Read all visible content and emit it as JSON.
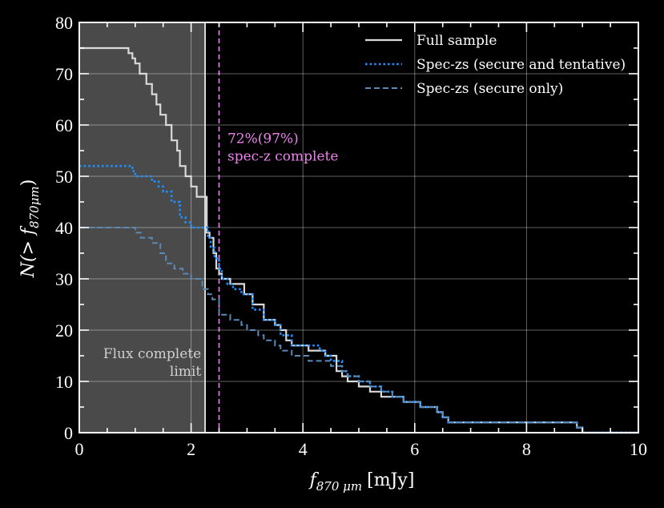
{
  "chart_data": {
    "type": "line",
    "xlabel": "f870 μm [mJy]",
    "xlabel_main": "f",
    "xlabel_sub": "870 μm",
    "xlabel_unit": "[mJy]",
    "ylabel": "N(> f870μm)",
    "ylabel_pre": "N(> f",
    "ylabel_sub": "870μm",
    "ylabel_post": ")",
    "xlim": [
      0,
      10
    ],
    "ylim": [
      0,
      80
    ],
    "x_ticks": [
      "0",
      "2",
      "4",
      "6",
      "8",
      "10"
    ],
    "y_ticks": [
      "0",
      "10",
      "20",
      "30",
      "40",
      "50",
      "60",
      "70",
      "80"
    ],
    "grid": true,
    "legend_position": "top-right",
    "series": [
      {
        "name": "Full sample",
        "style": "solid",
        "color": "#d9d9d9",
        "x": [
          0,
          0.8,
          0.88,
          0.95,
          1.0,
          1.08,
          1.2,
          1.3,
          1.38,
          1.45,
          1.55,
          1.65,
          1.75,
          1.8,
          1.9,
          2.0,
          2.1,
          2.28,
          2.33,
          2.4,
          2.45,
          2.5,
          2.55,
          2.6,
          2.7,
          2.95,
          3.1,
          3.3,
          3.5,
          3.6,
          3.7,
          3.8,
          4.1,
          4.3,
          4.4,
          4.6,
          4.7,
          4.8,
          5.0,
          5.2,
          5.4,
          5.6,
          5.8,
          6.1,
          6.4,
          6.5,
          6.6,
          8.8,
          8.9,
          9.0,
          10
        ],
        "y": [
          75,
          75,
          74,
          73,
          72,
          70,
          68,
          66,
          64,
          62,
          60,
          57,
          55,
          52,
          50,
          48,
          46,
          39,
          38,
          35,
          32,
          31,
          30,
          30,
          29,
          27,
          25,
          22,
          21,
          20,
          18,
          17,
          16,
          16,
          15,
          12,
          11,
          10,
          9,
          8,
          7,
          7,
          6,
          5,
          4,
          3,
          2,
          2,
          1,
          0,
          0
        ]
      },
      {
        "name": "Spec-zs (secure and tentative)",
        "style": "dotted",
        "color": "#1e90ff",
        "x": [
          0,
          0.88,
          0.95,
          1.0,
          1.1,
          1.3,
          1.42,
          1.5,
          1.65,
          1.8,
          1.9,
          2.0,
          2.1,
          2.2,
          2.3,
          2.35,
          2.42,
          2.5,
          2.55,
          2.65,
          2.75,
          2.9,
          3.1,
          3.3,
          3.5,
          3.6,
          3.8,
          4.3,
          4.4,
          4.5,
          4.7,
          4.8,
          5.0,
          5.2,
          5.4,
          5.6,
          5.8,
          6.1,
          6.4,
          6.5,
          6.6,
          8.8,
          8.9,
          9.0,
          10
        ],
        "y": [
          52,
          52,
          51,
          50,
          50,
          49,
          48,
          47,
          45,
          42,
          41,
          40,
          40,
          40,
          38,
          36,
          34,
          32,
          30,
          29,
          28,
          27,
          24,
          22,
          21,
          19,
          17,
          16,
          15,
          14,
          12,
          11,
          10,
          9,
          8,
          7,
          6,
          5,
          4,
          3,
          2,
          2,
          1,
          0,
          0
        ]
      },
      {
        "name": "Spec-zs (secure only)",
        "style": "dashed",
        "color": "#5b8ab8",
        "x": [
          0,
          0.9,
          1.0,
          1.1,
          1.3,
          1.45,
          1.55,
          1.7,
          1.85,
          2.0,
          2.2,
          2.3,
          2.38,
          2.5,
          2.6,
          2.7,
          2.8,
          2.9,
          3.0,
          3.1,
          3.2,
          3.3,
          3.5,
          3.6,
          3.8,
          4.1,
          4.3,
          4.5,
          4.7,
          4.8,
          5.0,
          5.2,
          5.4,
          5.6,
          5.8,
          6.1,
          6.4,
          6.5,
          6.6,
          8.8,
          8.9,
          9.0,
          10
        ],
        "y": [
          40,
          40,
          39,
          38,
          37,
          35,
          33,
          32,
          31,
          30,
          28,
          27,
          26,
          23,
          23,
          22,
          22,
          21,
          20,
          20,
          19,
          18,
          17,
          16,
          15,
          14,
          14,
          13,
          12,
          11,
          10,
          9,
          8,
          7,
          6,
          5,
          4,
          3,
          2,
          2,
          1,
          0,
          0
        ]
      }
    ],
    "shaded_region": {
      "x_range": [
        0,
        2.25
      ],
      "color": "#4a4a4a"
    },
    "vertical_lines": [
      {
        "x": 2.25,
        "color": "#ffffff",
        "style": "solid"
      },
      {
        "x": 2.5,
        "color": "#ee82ee",
        "style": "dashed"
      }
    ],
    "annotations": [
      {
        "lines": [
          "Flux complete",
          "limit"
        ],
        "color": "#d0d0d0",
        "x": 2.18,
        "y": 14.5,
        "anchor": "end"
      },
      {
        "lines": [
          "72%(97%)",
          "spec-z complete"
        ],
        "color": "#ee82ee",
        "x": 2.65,
        "y": 56.5,
        "anchor": "start"
      }
    ]
  }
}
